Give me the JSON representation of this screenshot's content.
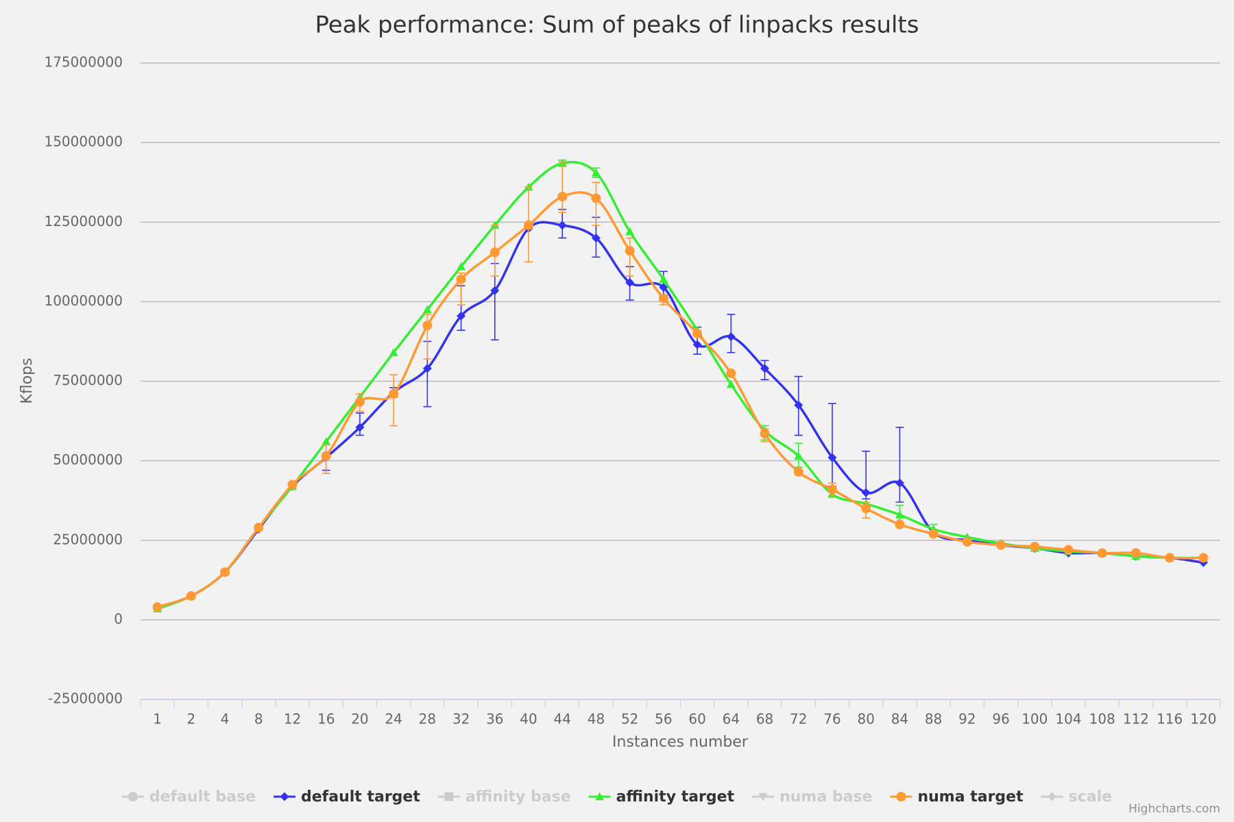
{
  "chart_data": {
    "type": "line",
    "title": "Peak performance: Sum of peaks of linpacks results",
    "x_label": "Instances number",
    "y_label": "Kflops",
    "credits": "Highcharts.com",
    "grid": true,
    "smooth": true,
    "hidden_color": "#cccccc",
    "categories": [
      "1",
      "2",
      "4",
      "8",
      "12",
      "16",
      "20",
      "24",
      "28",
      "32",
      "36",
      "40",
      "44",
      "48",
      "52",
      "56",
      "60",
      "64",
      "68",
      "72",
      "76",
      "80",
      "84",
      "88",
      "92",
      "96",
      "100",
      "104",
      "108",
      "112",
      "116",
      "120"
    ],
    "ylim": [
      -25000000,
      175000000
    ],
    "yticks": [
      -25000000,
      0,
      25000000,
      50000000,
      75000000,
      100000000,
      125000000,
      150000000,
      175000000
    ],
    "series": [
      {
        "name": "default base",
        "marker": "circle",
        "visible": false
      },
      {
        "name": "default target",
        "marker": "diamond",
        "visible": true,
        "color": "#3333ee",
        "values": [
          4000000,
          7500000,
          15000000,
          28500000,
          42000000,
          51000000,
          60500000,
          71500000,
          79000000,
          95500000,
          103500000,
          123000000,
          124000000,
          120000000,
          106000000,
          104500000,
          86500000,
          89000000,
          79000000,
          67500000,
          51000000,
          40000000,
          43000000,
          27500000,
          25000000,
          23500000,
          22500000,
          21000000,
          21000000,
          20000000,
          19500000,
          18000000
        ],
        "errors": [
          null,
          null,
          null,
          null,
          null,
          [
            47000000,
            52000000
          ],
          [
            58000000,
            65000000
          ],
          [
            70000000,
            73000000
          ],
          [
            67000000,
            87500000
          ],
          [
            91000000,
            105000000
          ],
          [
            88000000,
            112000000
          ],
          null,
          [
            120000000,
            129000000
          ],
          [
            114000000,
            126500000
          ],
          [
            100500000,
            111000000
          ],
          [
            102000000,
            109500000
          ],
          [
            83500000,
            92000000
          ],
          [
            84000000,
            96000000
          ],
          [
            75500000,
            81500000
          ],
          [
            58000000,
            76500000
          ],
          [
            42000000,
            68000000
          ],
          [
            38000000,
            53000000
          ],
          [
            37000000,
            60500000
          ],
          null,
          null,
          null,
          null,
          null,
          null,
          null,
          null,
          null
        ]
      },
      {
        "name": "affinity base",
        "marker": "square",
        "visible": false
      },
      {
        "name": "affinity target",
        "marker": "triangle",
        "visible": true,
        "color": "#33ee33",
        "values": [
          3500000,
          7500000,
          15000000,
          29000000,
          42000000,
          56000000,
          70000000,
          84000000,
          97500000,
          111000000,
          124000000,
          136000000,
          143500000,
          140500000,
          122000000,
          107000000,
          91000000,
          74000000,
          59500000,
          51500000,
          39500000,
          36500000,
          33000000,
          28500000,
          26000000,
          24000000,
          22500000,
          21500000,
          21000000,
          20000000,
          19500000,
          19500000
        ],
        "errors": [
          null,
          null,
          null,
          null,
          null,
          null,
          null,
          null,
          null,
          null,
          null,
          null,
          [
            142500000,
            144500000
          ],
          [
            139000000,
            142000000
          ],
          null,
          null,
          null,
          null,
          [
            56500000,
            61000000
          ],
          [
            48000000,
            55500000
          ],
          null,
          null,
          [
            30000000,
            36000000
          ],
          [
            27000000,
            30000000
          ],
          null,
          null,
          null,
          null,
          null,
          null,
          null,
          null
        ]
      },
      {
        "name": "numa base",
        "marker": "triangle-down",
        "visible": false
      },
      {
        "name": "numa target",
        "marker": "circle",
        "visible": true,
        "color": "#ff9933",
        "values": [
          4000000,
          7500000,
          15000000,
          29000000,
          42500000,
          51500000,
          68500000,
          71000000,
          92500000,
          107000000,
          115500000,
          124000000,
          133000000,
          132500000,
          116000000,
          101000000,
          90000000,
          77500000,
          58500000,
          46500000,
          41000000,
          35000000,
          30000000,
          27000000,
          24500000,
          23500000,
          23000000,
          22000000,
          21000000,
          21000000,
          19500000,
          19500000
        ],
        "errors": [
          null,
          null,
          null,
          null,
          null,
          [
            46000000,
            55000000
          ],
          [
            65500000,
            71000000
          ],
          [
            61000000,
            77000000
          ],
          [
            82000000,
            96000000
          ],
          [
            99000000,
            109000000
          ],
          [
            108000000,
            124000000
          ],
          [
            112500000,
            136000000
          ],
          [
            128000000,
            144000000
          ],
          [
            124000000,
            137500000
          ],
          [
            108000000,
            120000000
          ],
          [
            99000000,
            102000000
          ],
          null,
          null,
          [
            56000000,
            60000000
          ],
          null,
          [
            39000000,
            43000000
          ],
          [
            32000000,
            37000000
          ],
          null,
          null,
          null,
          null,
          null,
          null,
          null,
          null,
          null,
          null
        ]
      },
      {
        "name": "scale",
        "marker": "diamond",
        "visible": false
      }
    ]
  }
}
